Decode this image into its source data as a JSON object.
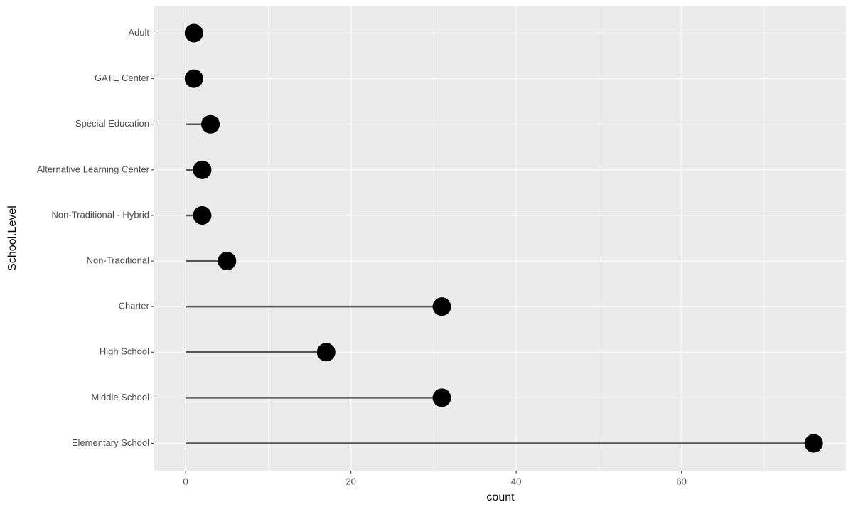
{
  "chart_data": {
    "type": "lollipop",
    "categories": [
      "Adult",
      "GATE Center",
      "Special Education",
      "Alternative Learning Center",
      "Non-Traditional - Hybrid",
      "Non-Traditional",
      "Charter",
      "High School",
      "Middle School",
      "Elementary School"
    ],
    "values": [
      1,
      1,
      3,
      2,
      2,
      5,
      31,
      17,
      31,
      76
    ],
    "x_label": "count",
    "y_label": "School.Level",
    "xlim": [
      -3.8,
      79.9
    ],
    "xticks": [
      0,
      20,
      40,
      60
    ],
    "grid": true,
    "color": "#000000",
    "stem_color": "#555555",
    "panel_color": "#ebebeb"
  }
}
